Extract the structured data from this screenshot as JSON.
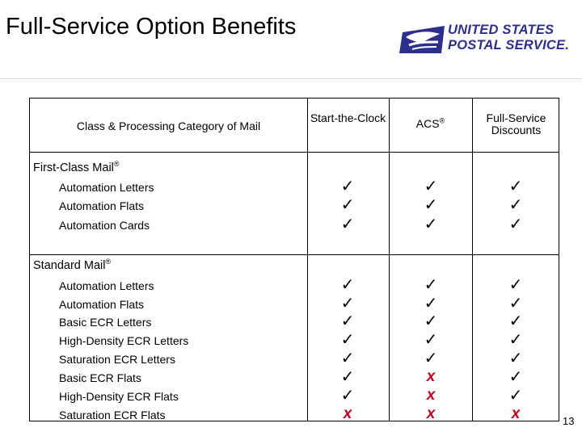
{
  "slide": {
    "title": "Full-Service Option Benefits",
    "page_number": "13"
  },
  "logo": {
    "line1": "UNITED STATES",
    "line2": "POSTAL SERVICE.",
    "brand_color": "#2d2f8f",
    "icon": "eagle-head-icon"
  },
  "table": {
    "headers": {
      "category": "Class & Processing Category of Mail",
      "start_the_clock": "Start-the-Clock",
      "acs": "ACS",
      "acs_mark": "®",
      "full_service_discounts": "Full-Service Discounts"
    },
    "symbols": {
      "yes": "✓",
      "no": "x"
    },
    "colors": {
      "yes": "#000000",
      "no": "#c0001d"
    },
    "groups": [
      {
        "label": "First-Class Mail",
        "mark": "®",
        "rows": [
          {
            "label": "Automation Letters",
            "start_the_clock": true,
            "acs": true,
            "full_service_discounts": true
          },
          {
            "label": "Automation Flats",
            "start_the_clock": true,
            "acs": true,
            "full_service_discounts": true
          },
          {
            "label": "Automation Cards",
            "start_the_clock": true,
            "acs": true,
            "full_service_discounts": true
          }
        ]
      },
      {
        "label": "Standard Mail",
        "mark": "®",
        "rows": [
          {
            "label": "Automation Letters",
            "start_the_clock": true,
            "acs": true,
            "full_service_discounts": true
          },
          {
            "label": "Automation Flats",
            "start_the_clock": true,
            "acs": true,
            "full_service_discounts": true
          },
          {
            "label": "Basic ECR Letters",
            "start_the_clock": true,
            "acs": true,
            "full_service_discounts": true
          },
          {
            "label": "High-Density ECR Letters",
            "start_the_clock": true,
            "acs": true,
            "full_service_discounts": true
          },
          {
            "label": "Saturation ECR Letters",
            "start_the_clock": true,
            "acs": true,
            "full_service_discounts": true
          },
          {
            "label": "Basic ECR Flats",
            "start_the_clock": true,
            "acs": false,
            "full_service_discounts": true
          },
          {
            "label": "High-Density ECR Flats",
            "start_the_clock": true,
            "acs": false,
            "full_service_discounts": true
          },
          {
            "label": "Saturation ECR Flats",
            "start_the_clock": false,
            "acs": false,
            "full_service_discounts": false
          }
        ]
      }
    ]
  }
}
